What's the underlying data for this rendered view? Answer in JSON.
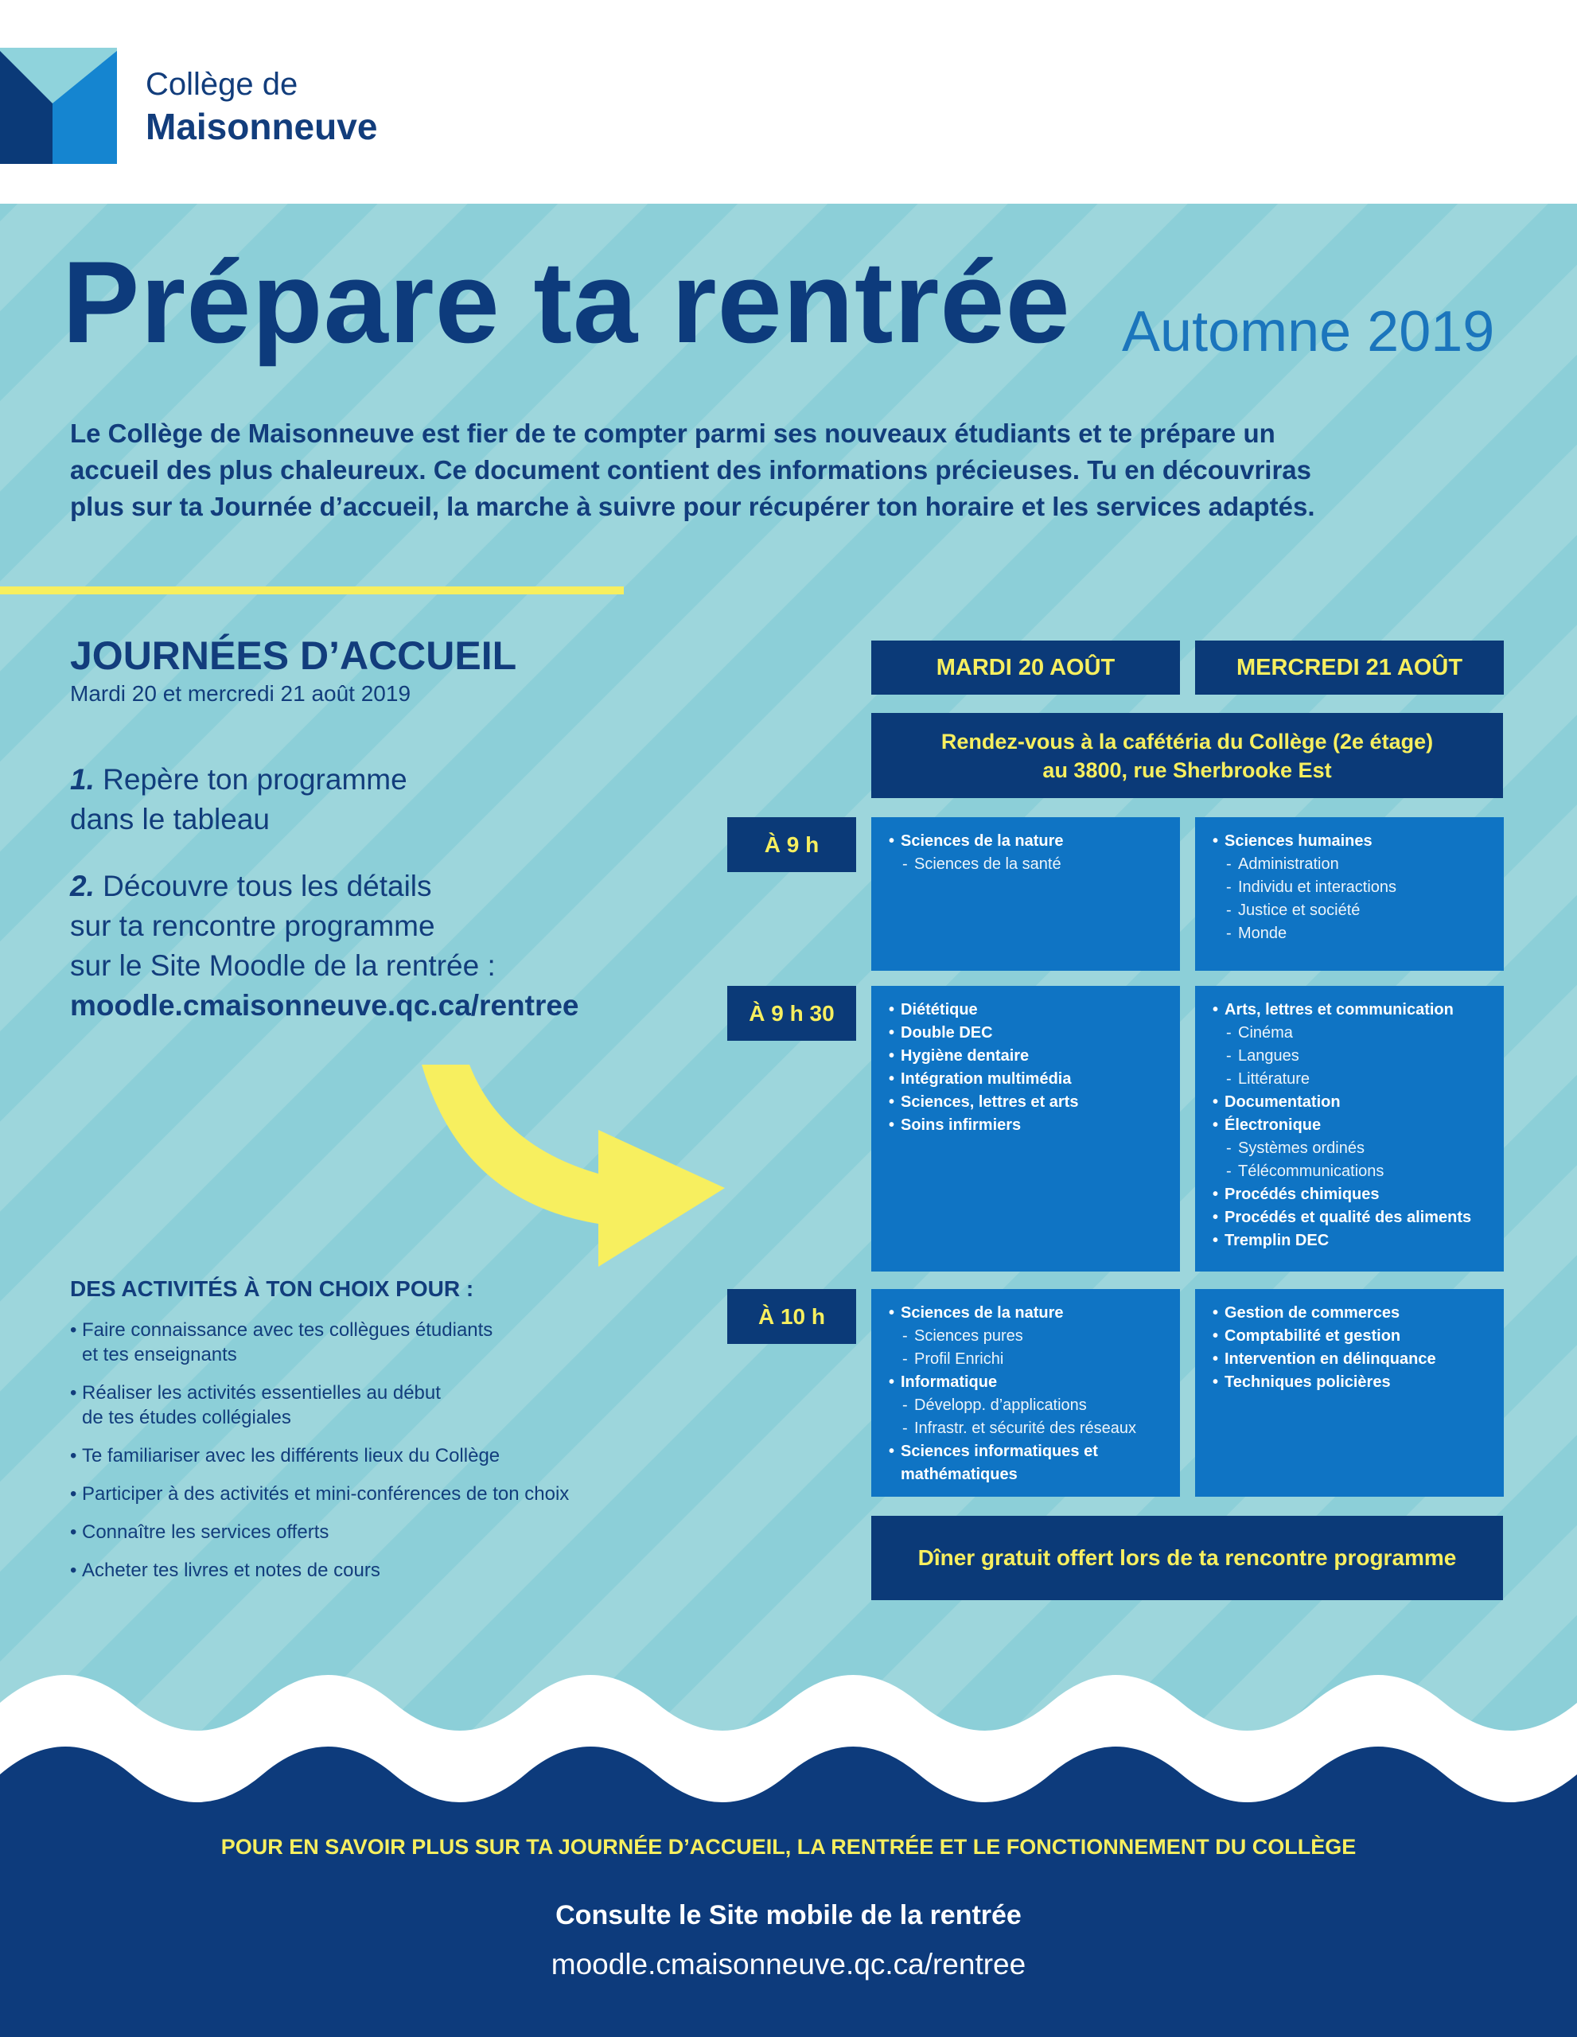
{
  "header": {
    "logo_line1": "Collège de",
    "logo_line2": "Maisonneuve"
  },
  "hero": {
    "title": "Prépare ta rentrée",
    "subtitle": "Automne 2019",
    "intro": [
      "Le Collège de Maisonneuve est fier de te compter parmi ses nouveaux étudiants et te prépare un",
      "accueil des plus chaleureux. Ce document contient des informations précieuses. Tu en découvriras",
      "plus sur ta Journée d’accueil, la marche à suivre pour récupérer ton horaire et les services adaptés."
    ]
  },
  "welcome_days": {
    "title": "JOURNÉES D’ACCUEIL",
    "dates": "Mardi 20 et mercredi 21 août 2019",
    "steps": [
      {
        "number": "1.",
        "lines": [
          "Repère ton programme",
          "dans le tableau"
        ]
      },
      {
        "number": "2.",
        "lines": [
          "Découvre tous les détails",
          "sur ta rencontre programme",
          "sur le Site Moodle de la rentrée :"
        ],
        "link": "moodle.cmaisonneuve.qc.ca/rentree"
      }
    ]
  },
  "activities": {
    "title": "DES ACTIVITÉS À TON CHOIX POUR :",
    "items": [
      [
        "Faire connaissance avec tes collègues étudiants",
        "et tes enseignants"
      ],
      [
        "Réaliser les activités essentielles au début",
        "de tes études collégiales"
      ],
      [
        "Te familiariser avec les différents lieux du Collège"
      ],
      [
        "Participer à des activités et mini-conférences de ton choix"
      ],
      [
        "Connaître les services offerts"
      ],
      [
        "Acheter tes livres et notes de cours"
      ]
    ]
  },
  "schedule": {
    "days": [
      "MARDI 20 AOÛT",
      "MERCREDI 21 AOÛT"
    ],
    "meeting": [
      "Rendez-vous à la cafétéria du Collège (2e étage)",
      "au 3800, rue Sherbrooke Est"
    ],
    "rows": [
      {
        "time": "À 9 h",
        "cells": [
          [
            {
              "label": "Sciences de la nature",
              "sub": [
                "Sciences de la santé"
              ]
            }
          ],
          [
            {
              "label": "Sciences humaines",
              "sub": [
                "Administration",
                "Individu et interactions",
                "Justice et société",
                "Monde"
              ]
            }
          ]
        ]
      },
      {
        "time": "À 9 h 30",
        "cells": [
          [
            {
              "label": "Diététique"
            },
            {
              "label": "Double DEC"
            },
            {
              "label": "Hygiène dentaire"
            },
            {
              "label": "Intégration multimédia"
            },
            {
              "label": "Sciences, lettres et arts"
            },
            {
              "label": "Soins infirmiers"
            }
          ],
          [
            {
              "label": "Arts, lettres et communication",
              "sub": [
                "Cinéma",
                "Langues",
                "Littérature"
              ]
            },
            {
              "label": "Documentation"
            },
            {
              "label": "Électronique",
              "sub": [
                "Systèmes ordinés",
                "Télécommunications"
              ]
            },
            {
              "label": "Procédés chimiques"
            },
            {
              "label": "Procédés et qualité des aliments"
            },
            {
              "label": "Tremplin DEC"
            }
          ]
        ]
      },
      {
        "time": "À 10 h",
        "cells": [
          [
            {
              "label": "Sciences de la nature",
              "sub": [
                "Sciences pures",
                "Profil Enrichi"
              ]
            },
            {
              "label": "Informatique",
              "sub": [
                "Développ. d’applications",
                "Infrastr. et sécurité des réseaux"
              ]
            },
            {
              "label": "Sciences informatiques et mathématiques"
            }
          ],
          [
            {
              "label": "Gestion de commerces"
            },
            {
              "label": "Comptabilité et gestion"
            },
            {
              "label": "Intervention en délinquance"
            },
            {
              "label": "Techniques policières"
            }
          ]
        ]
      }
    ],
    "lunch": "Dîner gratuit offert lors de ta rencontre programme"
  },
  "footer": {
    "more": "POUR EN SAVOIR PLUS SUR TA JOURNÉE D’ACCUEIL, LA RENTRÉE ET LE FONCTIONNEMENT DU COLLÈGE",
    "cta": "Consulte le Site mobile de la rentrée",
    "url": "moodle.cmaisonneuve.qc.ca/rentree"
  }
}
